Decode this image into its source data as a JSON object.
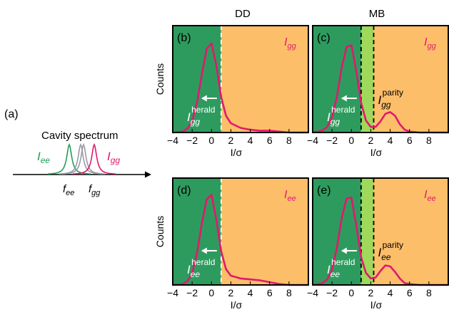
{
  "column_titles": [
    "DD",
    "MB"
  ],
  "cavity": {
    "panel_label": "(a)",
    "title": "Cavity spectrum",
    "i_ee": "I",
    "i_ee_sub": "ee",
    "i_gg": "I",
    "i_gg_sub": "gg",
    "f_ee": "f",
    "f_ee_sub": "ee",
    "f_gg": "f",
    "f_gg_sub": "gg"
  },
  "colors": {
    "herald_region": "#2e9b5e",
    "parity_region": "#9fd85a",
    "signal_region": "#fdbe6a",
    "curve": "#e0196e",
    "cavity_ee": "#1fa05a",
    "cavity_mid": "#9a9aa8",
    "cavity_gg": "#e0196e"
  },
  "chart_data": [
    {
      "type": "line",
      "panel_label": "(b)",
      "xlabel": "I/σ",
      "ylabel": "Counts",
      "xlim": [
        -4,
        10
      ],
      "ylim": [
        0,
        1.15
      ],
      "x_tick_labels": [
        "−4",
        "−2",
        "0",
        "2",
        "4",
        "6",
        "8"
      ],
      "x_ticks": [
        -4,
        -2,
        0,
        2,
        4,
        6,
        8
      ],
      "thresholds": [
        1.0
      ],
      "region_label_signal": "I",
      "region_label_signal_sub": "gg",
      "herald_label": "I",
      "herald_label_sub": "gg",
      "herald_label_sup": "herald",
      "parity_label": "",
      "series": [
        {
          "x": [
            -4,
            -3,
            -2.5,
            -2,
            -1.5,
            -1,
            -0.5,
            0,
            0.5,
            1,
            1.5,
            2,
            3,
            4,
            5,
            6,
            7,
            8,
            9,
            10
          ],
          "values": [
            0.0,
            0.01,
            0.04,
            0.12,
            0.32,
            0.62,
            0.9,
            0.96,
            0.72,
            0.38,
            0.18,
            0.1,
            0.05,
            0.03,
            0.02,
            0.02,
            0.01,
            0.0,
            0.0,
            0.0
          ]
        }
      ]
    },
    {
      "type": "line",
      "panel_label": "(c)",
      "xlabel": "I/σ",
      "ylabel": "",
      "xlim": [
        -4,
        10
      ],
      "ylim": [
        0,
        1.15
      ],
      "x_tick_labels": [
        "−4",
        "−2",
        "0",
        "2",
        "4",
        "6",
        "8"
      ],
      "x_ticks": [
        -4,
        -2,
        0,
        2,
        4,
        6,
        8
      ],
      "thresholds": [
        1.0,
        2.3
      ],
      "region_label_signal": "I",
      "region_label_signal_sub": "gg",
      "herald_label": "I",
      "herald_label_sub": "gg",
      "herald_label_sup": "herald",
      "parity_label": "I",
      "parity_label_sub": "gg",
      "parity_label_sup": "parity",
      "series": [
        {
          "x": [
            -4,
            -3,
            -2.5,
            -2,
            -1.5,
            -1,
            -0.5,
            0,
            0.5,
            1,
            1.5,
            2,
            2.5,
            3,
            3.5,
            4,
            4.5,
            5,
            5.5,
            6,
            7,
            8,
            10
          ],
          "values": [
            0.0,
            0.02,
            0.06,
            0.16,
            0.38,
            0.7,
            0.92,
            0.94,
            0.66,
            0.32,
            0.13,
            0.06,
            0.06,
            0.12,
            0.2,
            0.22,
            0.18,
            0.09,
            0.03,
            0.01,
            0.0,
            0.0,
            0.0
          ]
        }
      ]
    },
    {
      "type": "line",
      "panel_label": "(d)",
      "xlabel": "I/σ",
      "ylabel": "Counts",
      "xlim": [
        -4,
        10
      ],
      "ylim": [
        0,
        1.15
      ],
      "x_tick_labels": [
        "−4",
        "−2",
        "0",
        "2",
        "4",
        "6",
        "8"
      ],
      "x_ticks": [
        -4,
        -2,
        0,
        2,
        4,
        6,
        8
      ],
      "thresholds": [
        1.0
      ],
      "region_label_signal": "I",
      "region_label_signal_sub": "ee",
      "herald_label": "I",
      "herald_label_sub": "ee",
      "herald_label_sup": "herald",
      "parity_label": "",
      "series": [
        {
          "x": [
            -4,
            -3,
            -2.5,
            -2,
            -1.5,
            -1,
            -0.5,
            0,
            0.5,
            1,
            1.5,
            2,
            3,
            4,
            5,
            6,
            7,
            8,
            9,
            10
          ],
          "values": [
            0.0,
            0.01,
            0.04,
            0.12,
            0.34,
            0.66,
            0.92,
            0.97,
            0.7,
            0.36,
            0.17,
            0.1,
            0.07,
            0.06,
            0.05,
            0.03,
            0.01,
            0.0,
            0.0,
            0.0
          ]
        }
      ]
    },
    {
      "type": "line",
      "panel_label": "(e)",
      "xlabel": "I/σ",
      "ylabel": "",
      "xlim": [
        -4,
        10
      ],
      "ylim": [
        0,
        1.15
      ],
      "x_tick_labels": [
        "−4",
        "−2",
        "0",
        "2",
        "4",
        "6",
        "8"
      ],
      "x_ticks": [
        -4,
        -2,
        0,
        2,
        4,
        6,
        8
      ],
      "thresholds": [
        1.0,
        2.3
      ],
      "region_label_signal": "I",
      "region_label_signal_sub": "ee",
      "herald_label": "I",
      "herald_label_sub": "ee",
      "herald_label_sup": "herald",
      "parity_label": "I",
      "parity_label_sub": "ee",
      "parity_label_sup": "parity",
      "series": [
        {
          "x": [
            -4,
            -3,
            -2.5,
            -2,
            -1.5,
            -1,
            -0.5,
            0,
            0.5,
            1,
            1.5,
            2,
            2.5,
            3,
            3.5,
            4,
            4.5,
            5,
            5.5,
            6,
            7,
            8,
            10
          ],
          "values": [
            0.0,
            0.02,
            0.06,
            0.16,
            0.4,
            0.72,
            0.93,
            0.94,
            0.64,
            0.3,
            0.13,
            0.07,
            0.08,
            0.15,
            0.21,
            0.2,
            0.14,
            0.07,
            0.02,
            0.01,
            0.0,
            0.0,
            0.0
          ]
        }
      ]
    }
  ]
}
